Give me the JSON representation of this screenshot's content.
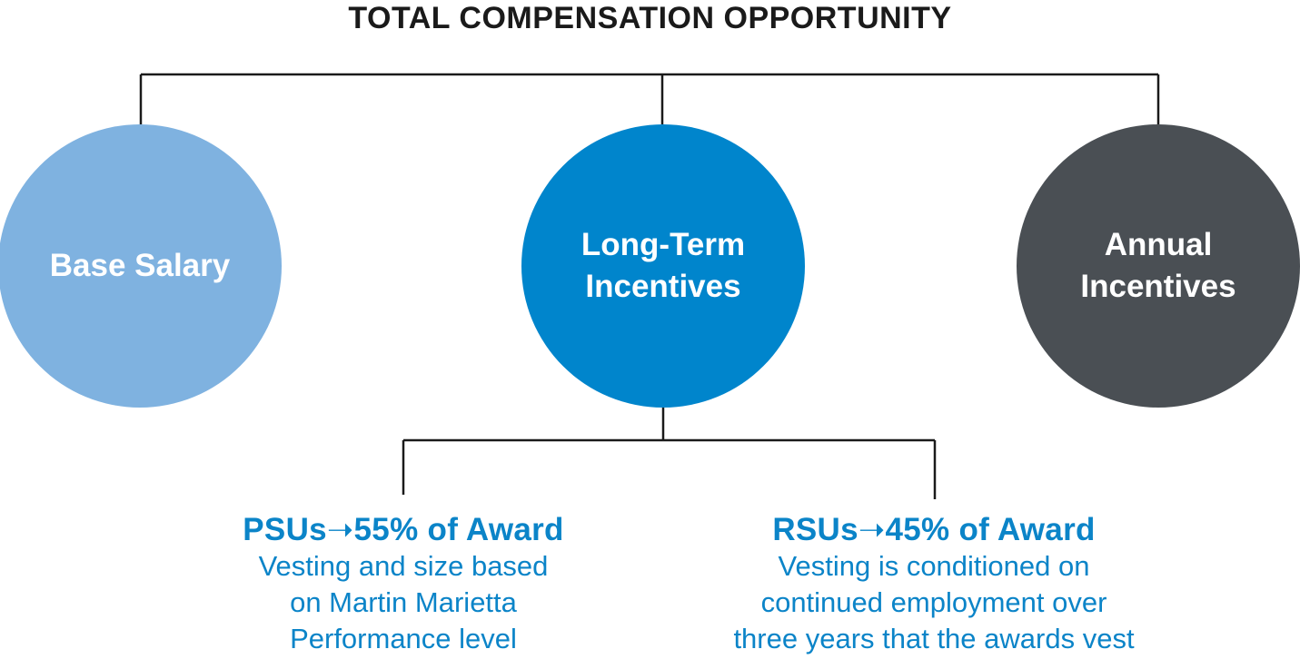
{
  "title": "TOTAL COMPENSATION OPPORTUNITY",
  "components": [
    {
      "label": "Base Salary",
      "color": "#7fb2e0"
    },
    {
      "label": "Long-Term\nIncentives",
      "color": "#0085cc"
    },
    {
      "label": "Annual\nIncentives",
      "color": "#4a4f54"
    }
  ],
  "awards": [
    {
      "heading": "PSUs➝55% of Award",
      "description": "Vesting and size based\non Martin Marietta\nPerformance level"
    },
    {
      "heading": "RSUs➝45% of Award",
      "description": "Vesting is conditioned on\ncontinued employment over\nthree years that the awards vest"
    }
  ],
  "colors": {
    "award_text": "#0b84c8",
    "connector": "#1a1a1a"
  }
}
